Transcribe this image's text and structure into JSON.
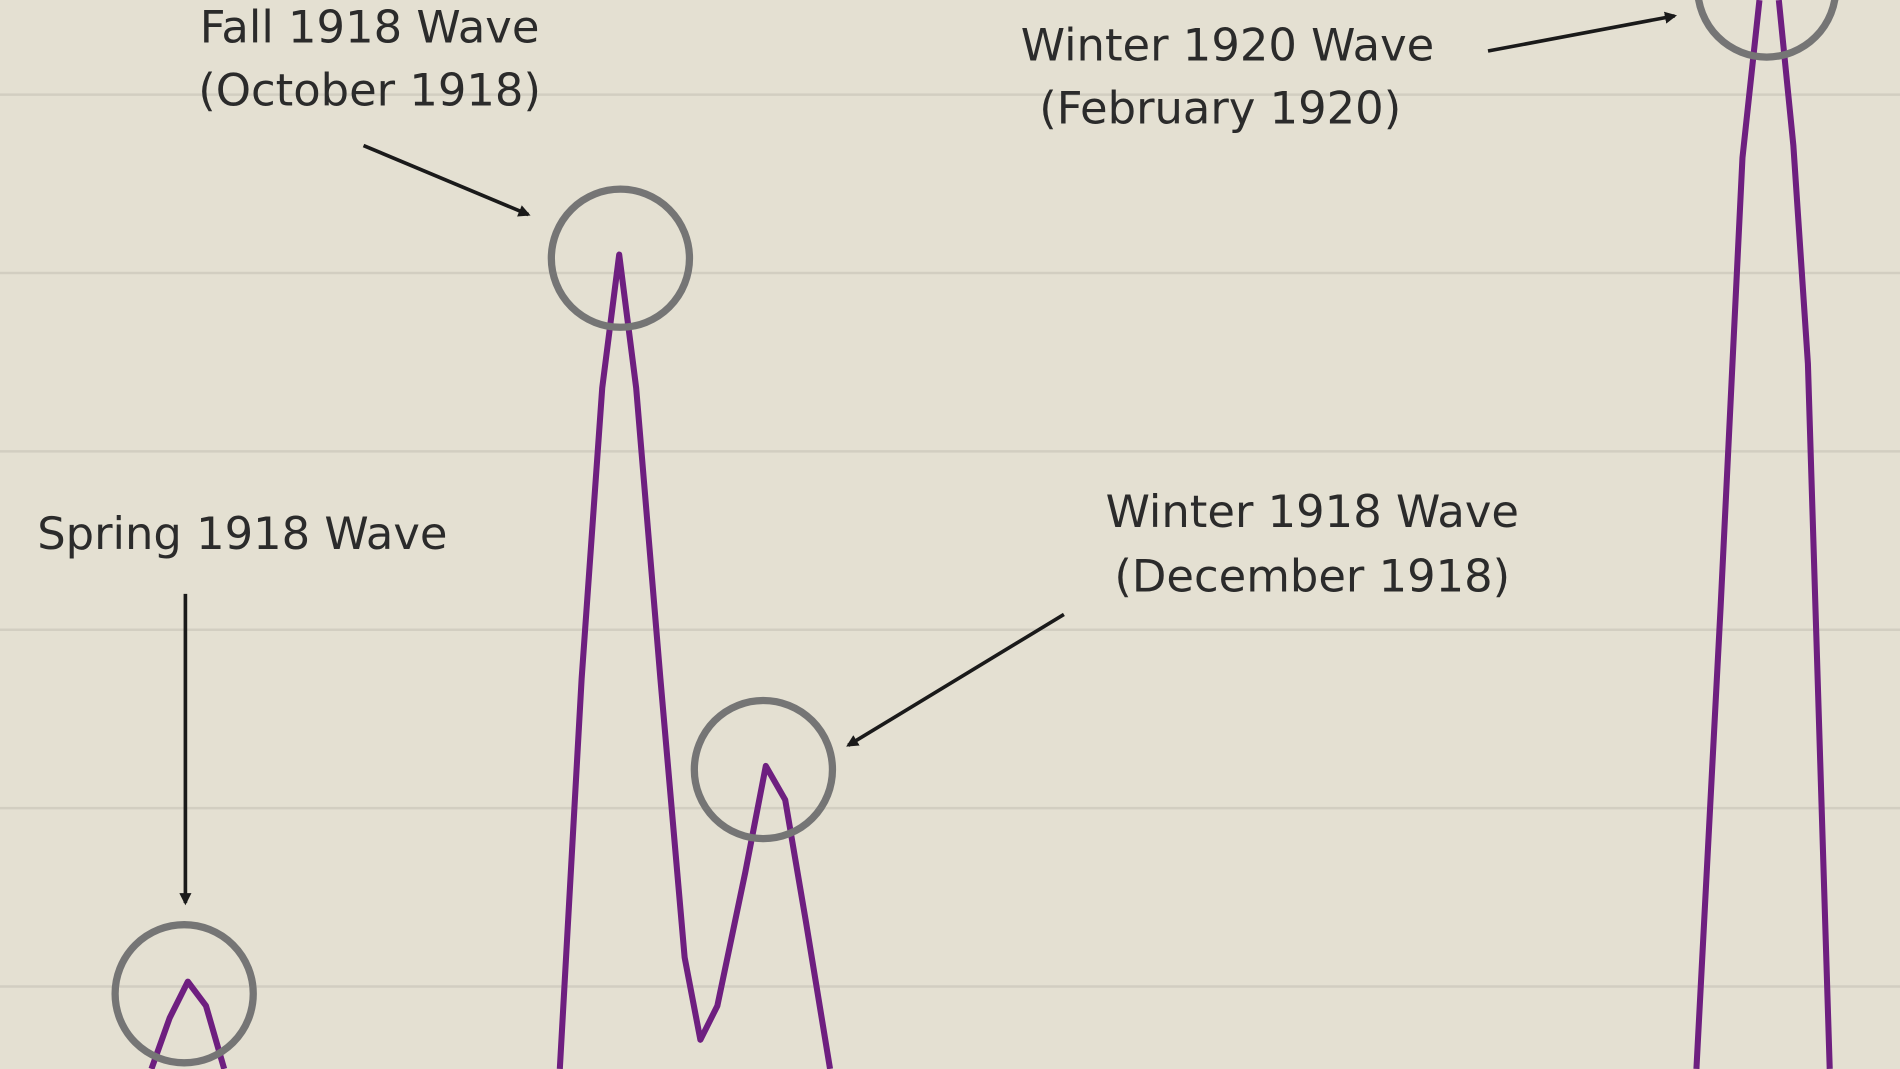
{
  "chart_data": {
    "type": "line",
    "grid": true,
    "annotations": [
      "Fall 1918 Wave",
      "(October 1918)",
      "Winter 1920 Wave",
      "(February 1920)",
      "Spring 1918 Wave",
      "Winter 1918 Wave",
      "(December 1918)"
    ]
  }
}
